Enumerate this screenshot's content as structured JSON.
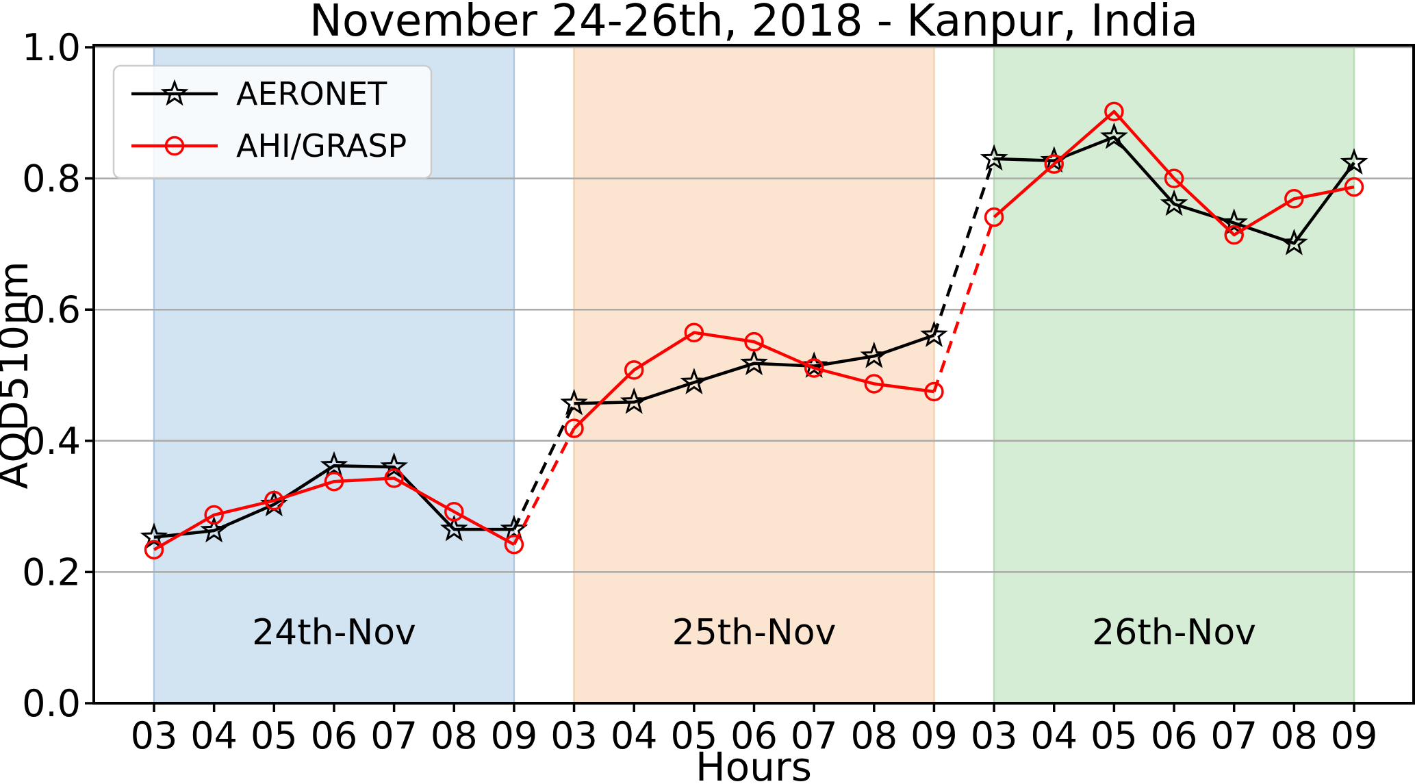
{
  "title": "November 24-26th, 2018 - Kanpur, India",
  "chart_data": {
    "type": "line",
    "title": "November 24-26th, 2018 - Kanpur, India",
    "xlabel": "Hours",
    "ylabel": "AOD510nm",
    "ylim": [
      0.0,
      1.0
    ],
    "yticks": [
      0.0,
      0.2,
      0.4,
      0.6,
      0.8,
      1.0
    ],
    "ytick_labels": [
      "0.0",
      "0.2",
      "0.4",
      "0.6",
      "0.8",
      "1.0"
    ],
    "grid": "horizontal",
    "grid_color": "#aaaaaa",
    "background_color": "#ffffff",
    "legend_position": "upper-left",
    "categories": [
      "03",
      "04",
      "05",
      "06",
      "07",
      "08",
      "09",
      "03",
      "04",
      "05",
      "06",
      "07",
      "08",
      "09",
      "03",
      "04",
      "05",
      "06",
      "07",
      "08",
      "09"
    ],
    "day_groups": [
      {
        "label": "24th-Nov",
        "fill": "#d2e3f1",
        "edge": "#afc9e1",
        "start_index": 0,
        "end_index": 6
      },
      {
        "label": "25th-Nov",
        "fill": "#fce5d0",
        "edge": "#f7d0ad",
        "start_index": 7,
        "end_index": 13
      },
      {
        "label": "26th-Nov",
        "fill": "#d5ecd5",
        "edge": "#b8deb8",
        "start_index": 14,
        "end_index": 20
      }
    ],
    "dashed_connections": [
      [
        6,
        7
      ],
      [
        13,
        14
      ]
    ],
    "series": [
      {
        "name": "AERONET",
        "color": "#000000",
        "marker": "star-icon",
        "values": [
          0.253,
          0.263,
          0.303,
          0.362,
          0.36,
          0.265,
          0.265,
          0.457,
          0.459,
          0.489,
          0.518,
          0.514,
          0.529,
          0.561,
          0.83,
          0.827,
          0.863,
          0.761,
          0.732,
          0.701,
          0.824
        ]
      },
      {
        "name": "AHI/GRASP",
        "color": "#ff0000",
        "marker": "circle-icon",
        "values": [
          0.234,
          0.287,
          0.309,
          0.338,
          0.343,
          0.292,
          0.242,
          0.419,
          0.508,
          0.565,
          0.551,
          0.511,
          0.487,
          0.475,
          0.741,
          0.822,
          0.902,
          0.8,
          0.714,
          0.769,
          0.787
        ]
      }
    ]
  }
}
